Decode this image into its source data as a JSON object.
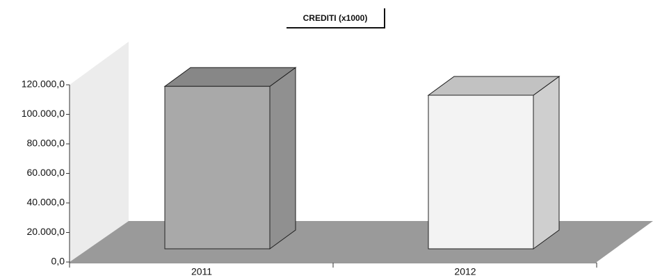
{
  "chart_data": {
    "type": "bar3d",
    "title": "CREDITI (x1000)",
    "categories": [
      "2011",
      "2012"
    ],
    "values": [
      110000,
      104000
    ],
    "colors": [
      "#a9a9a9",
      "#f3f3f3"
    ],
    "ylim": [
      0,
      120000
    ],
    "yticks": [
      {
        "value": 0,
        "label": "0,0"
      },
      {
        "value": 20000,
        "label": "20.000,0"
      },
      {
        "value": 40000,
        "label": "40.000,0"
      },
      {
        "value": 60000,
        "label": "60.000,0"
      },
      {
        "value": 80000,
        "label": "80.000,0"
      },
      {
        "value": 100000,
        "label": "100.000,0"
      },
      {
        "value": 120000,
        "label": "120.000,0"
      }
    ]
  }
}
